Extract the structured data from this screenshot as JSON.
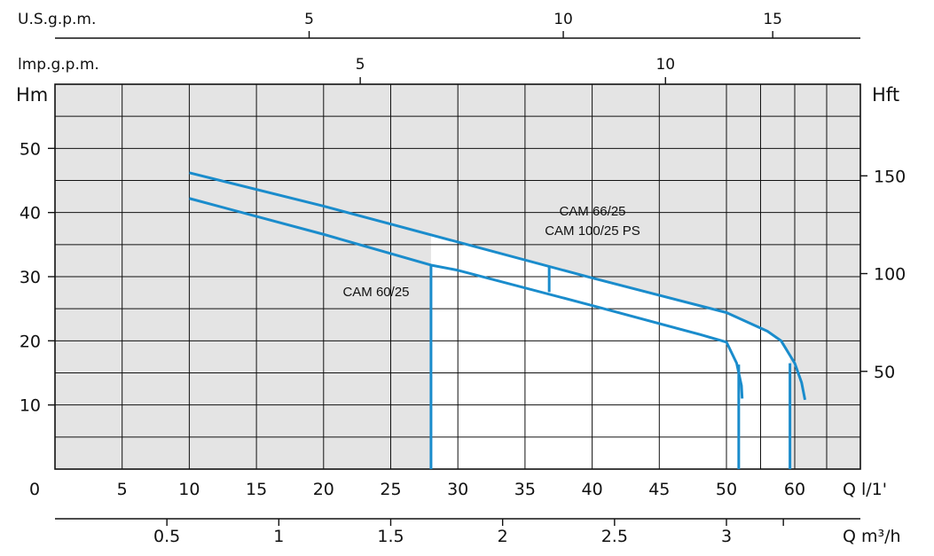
{
  "chart_data": {
    "type": "line",
    "title": "",
    "y_left": {
      "label": "Hm",
      "ticks": [
        10,
        20,
        30,
        40,
        50
      ],
      "range": [
        0,
        60
      ]
    },
    "y_right": {
      "label": "Hft",
      "ticks": [
        50,
        100,
        150
      ]
    },
    "x_lmin": {
      "label": "Q l/1'",
      "zero_label": "0",
      "ticks": [
        5,
        10,
        15,
        20,
        25,
        30,
        35,
        40,
        45,
        50,
        60
      ],
      "range": [
        0,
        60
      ]
    },
    "x_m3h": {
      "label": "Q m³/h",
      "ticks": [
        "0.5",
        "1",
        "1.5",
        "2",
        "2.5",
        "3"
      ]
    },
    "x_usgpm": {
      "label": "U.S.g.p.m.",
      "ticks": [
        "5",
        "10",
        "15"
      ]
    },
    "x_impgpm": {
      "label": "lmp.g.p.m.",
      "ticks": [
        "5",
        "10"
      ]
    },
    "grid": true,
    "series": [
      {
        "name": "CAM 66/25\nCAM 100/25 PS",
        "label_lines": [
          "CAM 66/25",
          "CAM 100/25 PS"
        ],
        "color": "#1a8ccc",
        "points": [
          [
            10,
            46.2
          ],
          [
            20,
            41.0
          ],
          [
            30,
            35.4
          ],
          [
            40,
            29.8
          ],
          [
            50,
            24.4
          ],
          [
            56,
            21.5
          ],
          [
            58,
            20.0
          ],
          [
            60,
            16.5
          ],
          [
            61,
            13.5
          ],
          [
            61.5,
            10.8
          ]
        ],
        "limit_line": {
          "q": 36.8,
          "from_h": 27.6,
          "to_h": 31.6
        },
        "runout_line": {
          "q": 59.3,
          "from_h": 0,
          "to_h": 16.5
        }
      },
      {
        "name": "CAM 60/25",
        "label_lines": [
          "CAM 60/25"
        ],
        "color": "#1a8ccc",
        "points": [
          [
            10,
            42.2
          ],
          [
            20,
            36.6
          ],
          [
            28,
            31.8
          ],
          [
            30,
            31.0
          ],
          [
            40,
            25.5
          ],
          [
            48,
            21.0
          ],
          [
            50,
            19.8
          ],
          [
            51.5,
            16.5
          ],
          [
            52.2,
            13.0
          ],
          [
            52.3,
            11.0
          ]
        ],
        "limit_line": {
          "q": 28.0,
          "from_h": 0,
          "to_h": 31.8
        },
        "runout_line": {
          "q": 51.8,
          "from_h": 0,
          "to_h": 16.3
        }
      }
    ]
  }
}
